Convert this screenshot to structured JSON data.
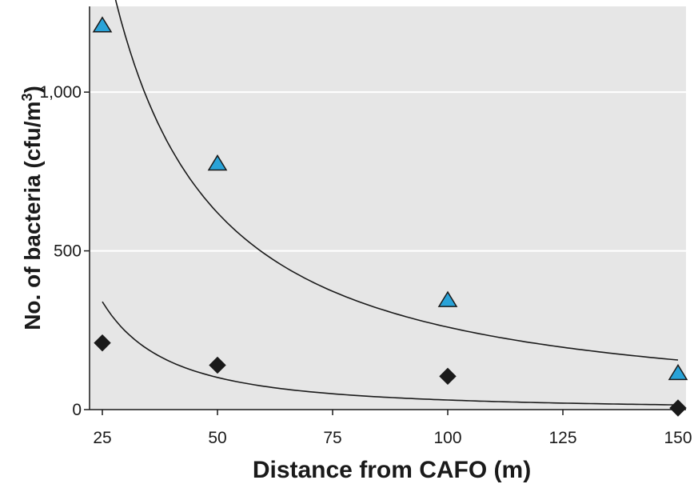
{
  "chart_data": {
    "type": "scatter",
    "title": "",
    "xlabel": "Distance from CAFO (m)",
    "ylabel": "No. of bacteria (cfu/m",
    "ylabel_superscript": "3",
    "ylabel_suffix": ")",
    "xlim": [
      25,
      150
    ],
    "ylim": [
      0,
      1270
    ],
    "x_ticks": [
      25,
      50,
      75,
      100,
      125,
      150
    ],
    "x_tick_labels": [
      "25",
      "50",
      "75",
      "100",
      "125",
      "150"
    ],
    "y_ticks": [
      0,
      500,
      1000
    ],
    "y_tick_labels": [
      "0",
      "500",
      "1,000"
    ],
    "grid": "horizontal",
    "plot_background": "#e6e6e6",
    "series": [
      {
        "marker": "triangle",
        "color": "#29a3d8",
        "x": [
          25,
          50,
          100,
          150
        ],
        "y": [
          1210,
          775,
          345,
          115
        ],
        "trend": "fitted curve"
      },
      {
        "marker": "diamond",
        "color": "#1a1a1a",
        "x": [
          25,
          50,
          100,
          150
        ],
        "y": [
          210,
          140,
          105,
          5
        ],
        "trend": "fitted curve"
      }
    ]
  }
}
